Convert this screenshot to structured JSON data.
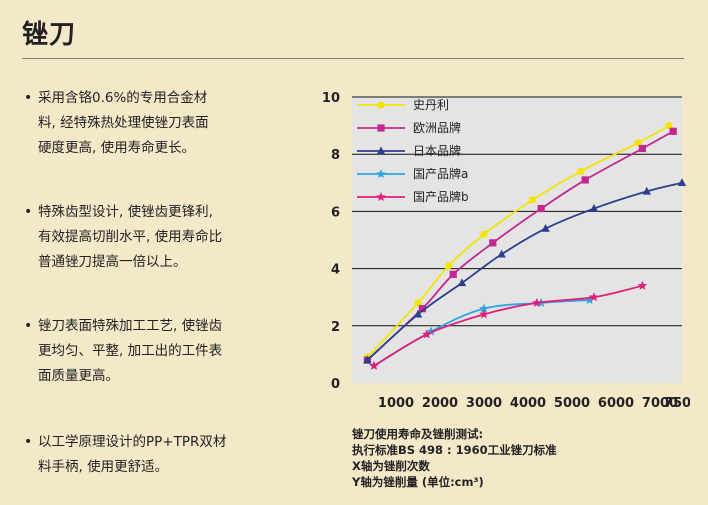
{
  "page": {
    "title": "锉刀"
  },
  "bullets": [
    {
      "lines": [
        "采用含铬0.6%的专用合金材",
        "料, 经特殊热处理使锉刀表面",
        "硬度更高, 使用寿命更长。"
      ]
    },
    {
      "lines": [
        "特殊齿型设计, 使锉齿更锋利,",
        "有效提高切削水平, 使用寿命比",
        "普通锉刀提高一倍以上。"
      ]
    },
    {
      "lines": [
        "锉刀表面特殊加工工艺, 使锉齿",
        "更均匀、平整, 加工出的工件表",
        "面质量更高。"
      ]
    },
    {
      "lines": [
        "以工学原理设计的PP+TPR双材",
        "料手柄, 使用更舒适。"
      ]
    }
  ],
  "notes": [
    "锉刀使用寿命及锉削测试:",
    "执行标准BS 498 : 1960工业锉刀标准",
    "X轴为锉削次数",
    "Y轴为锉削量 (单位:cm³)"
  ],
  "chart_data": {
    "type": "line",
    "xlim": [
      0,
      7500
    ],
    "ylim": [
      0,
      10
    ],
    "xticks": [
      1000,
      2000,
      3000,
      4000,
      5000,
      6000,
      7000,
      7500
    ],
    "xtick_labels": [
      "1000",
      "2000",
      "3000",
      "4000",
      "5000",
      "6000",
      "7000",
      "7500"
    ],
    "yticks": [
      0,
      2,
      4,
      6,
      8,
      10
    ],
    "ytick_labels": [
      "0",
      "2",
      "4",
      "6",
      "8",
      "10"
    ],
    "grid": "horizontal",
    "legend_position": "top-left",
    "plot_background": "#e4e4e4",
    "series": [
      {
        "name": "史丹利",
        "color": "#f2e600",
        "marker": "circle",
        "x": [
          350,
          1500,
          2200,
          3000,
          4100,
          5200,
          6500,
          7200
        ],
        "y": [
          0.9,
          2.8,
          4.1,
          5.2,
          6.4,
          7.4,
          8.4,
          9.0
        ]
      },
      {
        "name": "欧洲品牌",
        "color": "#c2288e",
        "marker": "square",
        "x": [
          350,
          1600,
          2300,
          3200,
          4300,
          5300,
          6600,
          7300
        ],
        "y": [
          0.8,
          2.6,
          3.8,
          4.9,
          6.1,
          7.1,
          8.2,
          8.8
        ]
      },
      {
        "name": "日本品牌",
        "color": "#2c3e8c",
        "marker": "triangle",
        "x": [
          350,
          1500,
          2500,
          3400,
          4400,
          5500,
          6700,
          7500
        ],
        "y": [
          0.8,
          2.4,
          3.5,
          4.5,
          5.4,
          6.1,
          6.7,
          7.0
        ]
      },
      {
        "name": "国产品牌a",
        "color": "#2aa7e0",
        "marker": "star",
        "x": [
          500,
          1800,
          3000,
          4300,
          5400
        ],
        "y": [
          0.6,
          1.8,
          2.6,
          2.8,
          2.9
        ]
      },
      {
        "name": "国产品牌b",
        "color": "#e0207c",
        "marker": "star",
        "x": [
          500,
          1700,
          3000,
          4200,
          5500,
          6600
        ],
        "y": [
          0.6,
          1.7,
          2.4,
          2.8,
          3.0,
          3.4
        ]
      }
    ]
  }
}
